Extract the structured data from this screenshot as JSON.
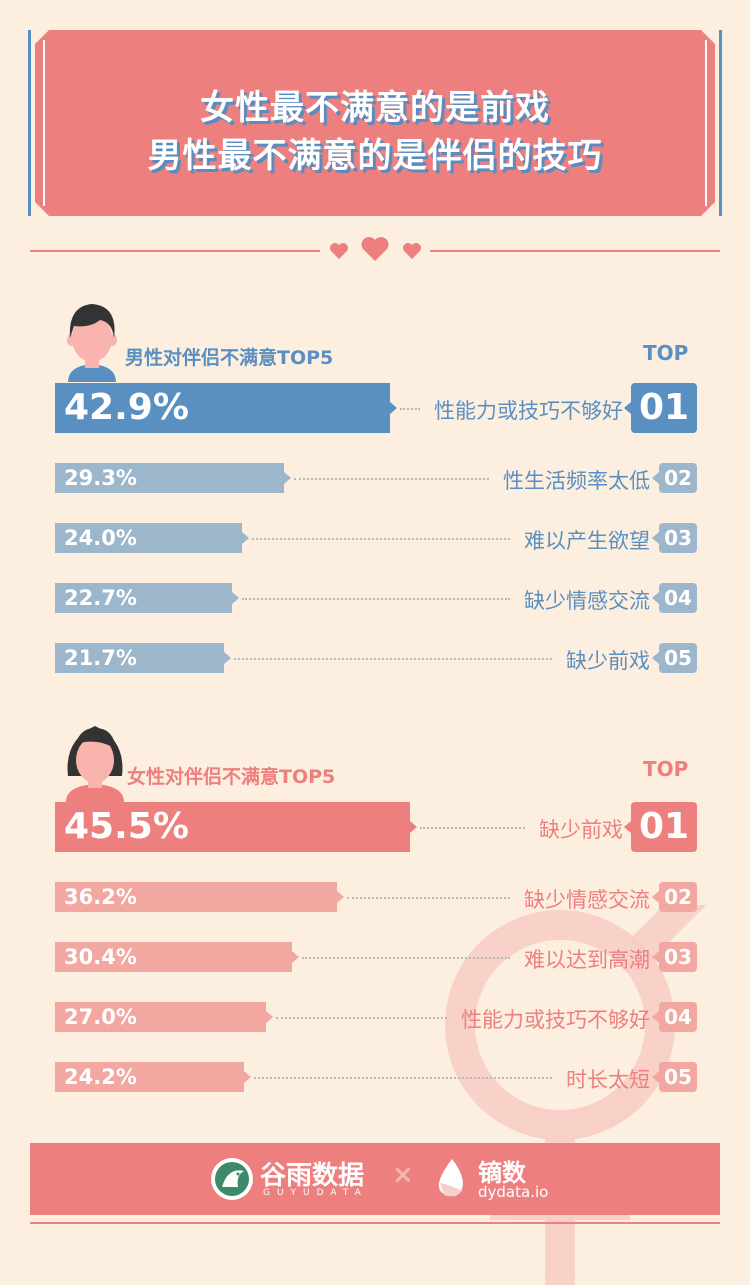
{
  "header": {
    "title_line1": "女性最不满意的是前戏",
    "title_line2": "男性最不满意的是伴侣的技巧"
  },
  "colors": {
    "background": "#fdefe0",
    "banner": "#ee7f7f",
    "male_primary": "#5a8fc2",
    "male_secondary": "#9cb6cc",
    "female_primary": "#ee7f7f",
    "female_secondary": "#f2a8a0"
  },
  "male_section": {
    "title": "男性对伴侣不满意TOP5",
    "top_label": "TOP"
  },
  "female_section": {
    "title": "女性对伴侣不满意TOP5",
    "top_label": "TOP"
  },
  "chart_data": [
    {
      "type": "bar",
      "title": "男性对伴侣不满意TOP5",
      "unit": "%",
      "categories": [
        "性能力或技巧不够好",
        "性生活频率太低",
        "难以产生欲望",
        "缺少情感交流",
        "缺少前戏"
      ],
      "values": [
        42.9,
        29.3,
        24.0,
        22.7,
        21.7
      ],
      "value_labels": [
        "42.9%",
        "29.3%",
        "24.0%",
        "22.7%",
        "21.7%"
      ],
      "ranks": [
        "01",
        "02",
        "03",
        "04",
        "05"
      ],
      "xlim": [
        0,
        100
      ]
    },
    {
      "type": "bar",
      "title": "女性对伴侣不满意TOP5",
      "unit": "%",
      "categories": [
        "缺少前戏",
        "缺少情感交流",
        "难以达到高潮",
        "性能力或技巧不够好",
        "时长太短"
      ],
      "values": [
        45.5,
        36.2,
        30.4,
        27.0,
        24.2
      ],
      "value_labels": [
        "45.5%",
        "36.2%",
        "30.4%",
        "27.0%",
        "24.2%"
      ],
      "ranks": [
        "01",
        "02",
        "03",
        "04",
        "05"
      ],
      "xlim": [
        0,
        100
      ]
    }
  ],
  "footer": {
    "logo1_name": "谷雨数据",
    "logo1_sub": "GUYUDATA",
    "separator": "×",
    "logo2_name": "镝数",
    "logo2_sub": "dydata.io"
  }
}
